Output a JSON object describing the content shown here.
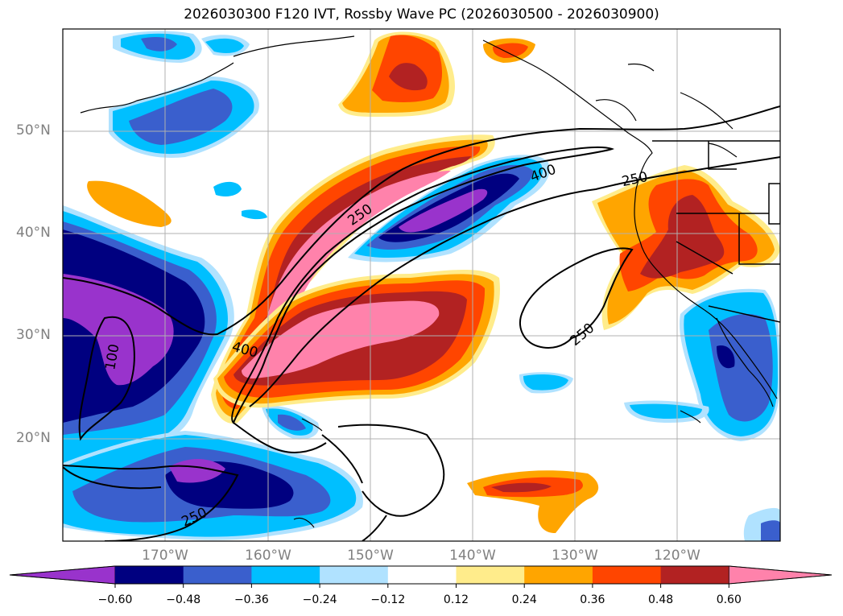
{
  "title": "2026030300 F120 IVT, Rossby Wave PC (2026030500 - 2026030900)",
  "map": {
    "lat_labels": [
      "50°N",
      "40°N",
      "30°N",
      "20°N"
    ],
    "lon_labels": [
      "170°W",
      "160°W",
      "150°W",
      "140°W",
      "130°W",
      "120°W"
    ],
    "contour_labels": [
      "400",
      "250",
      "250",
      "400",
      "250",
      "100",
      "250"
    ],
    "ivt_contour_levels": [
      100,
      250,
      400
    ],
    "gridlines": true
  },
  "colorbar": {
    "ticks": [
      "−0.60",
      "−0.48",
      "−0.36",
      "−0.24",
      "−0.12",
      "0.12",
      "0.24",
      "0.36",
      "0.48",
      "0.60"
    ],
    "colors": [
      "#9933cc",
      "#000080",
      "#3a5fcd",
      "#00bfff",
      "#b0e2ff",
      "#ffffff",
      "#ffec8b",
      "#ffa500",
      "#ff4500",
      "#b22222",
      "#ff82ab"
    ]
  }
}
